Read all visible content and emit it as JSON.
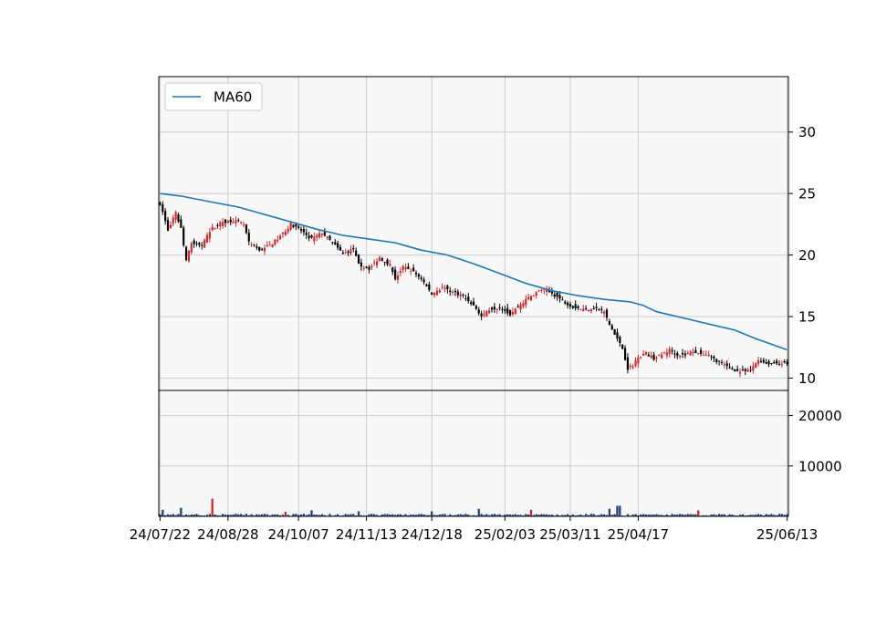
{
  "chart_data": {
    "type": "candlestick",
    "colors": {
      "up": "#d62728",
      "down": "#000000",
      "ma": "#1f77b4",
      "volume": "#1f3f7f",
      "volume_up": "#d62728",
      "panel_bg": "#f8f8f8",
      "grid": "#cccccc"
    },
    "legend": {
      "entries": [
        "MA60"
      ],
      "placement": "top-left"
    },
    "grid": true,
    "x_ticks": [
      "24/07/22",
      "24/08/28",
      "24/10/07",
      "24/11/13",
      "24/12/18",
      "25/02/03",
      "25/03/11",
      "25/04/17",
      "25/06/13"
    ],
    "price_panel": {
      "yaxis_side": "right",
      "yticks": [
        10,
        15,
        20,
        25,
        30
      ],
      "ylim": [
        9,
        34.5
      ]
    },
    "volume_panel": {
      "yaxis_side": "right",
      "yticks": [
        10000,
        20000
      ],
      "ylim": [
        0,
        25000
      ]
    },
    "ma60": [
      [
        0,
        25.0
      ],
      [
        8,
        24.8
      ],
      [
        20,
        24.3
      ],
      [
        30,
        23.9
      ],
      [
        40,
        23.3
      ],
      [
        50,
        22.7
      ],
      [
        60,
        22.1
      ],
      [
        70,
        21.6
      ],
      [
        80,
        21.3
      ],
      [
        90,
        21.0
      ],
      [
        95,
        20.7
      ],
      [
        100,
        20.4
      ],
      [
        110,
        20.0
      ],
      [
        120,
        19.3
      ],
      [
        130,
        18.5
      ],
      [
        140,
        17.7
      ],
      [
        150,
        17.1
      ],
      [
        160,
        16.7
      ],
      [
        170,
        16.4
      ],
      [
        180,
        16.2
      ],
      [
        185,
        15.9
      ],
      [
        190,
        15.4
      ],
      [
        200,
        14.9
      ],
      [
        210,
        14.4
      ],
      [
        220,
        13.9
      ],
      [
        228,
        13.2
      ],
      [
        236,
        12.6
      ],
      [
        240,
        12.3
      ]
    ],
    "anchors": [
      [
        0,
        24.2
      ],
      [
        1,
        23.5
      ],
      [
        3,
        22.0
      ],
      [
        6,
        23.4
      ],
      [
        8,
        22.2
      ],
      [
        10,
        19.5
      ],
      [
        12,
        21.0
      ],
      [
        16,
        20.8
      ],
      [
        20,
        22.2
      ],
      [
        24,
        22.7
      ],
      [
        28,
        22.8
      ],
      [
        32,
        22.5
      ],
      [
        34,
        21.0
      ],
      [
        38,
        20.4
      ],
      [
        42,
        20.8
      ],
      [
        46,
        21.5
      ],
      [
        50,
        22.5
      ],
      [
        54,
        22.0
      ],
      [
        58,
        21.3
      ],
      [
        62,
        21.8
      ],
      [
        66,
        21.0
      ],
      [
        70,
        20.1
      ],
      [
        74,
        20.5
      ],
      [
        76,
        19.2
      ],
      [
        80,
        18.9
      ],
      [
        84,
        19.8
      ],
      [
        88,
        19.2
      ],
      [
        90,
        18.1
      ],
      [
        93,
        19.0
      ],
      [
        96,
        18.8
      ],
      [
        100,
        18.1
      ],
      [
        104,
        16.8
      ],
      [
        108,
        17.4
      ],
      [
        112,
        17.0
      ],
      [
        116,
        16.7
      ],
      [
        120,
        15.9
      ],
      [
        123,
        15.0
      ],
      [
        126,
        15.6
      ],
      [
        130,
        15.8
      ],
      [
        134,
        15.2
      ],
      [
        138,
        16.0
      ],
      [
        142,
        16.7
      ],
      [
        146,
        17.2
      ],
      [
        150,
        16.9
      ],
      [
        154,
        16.3
      ],
      [
        158,
        15.8
      ],
      [
        162,
        15.6
      ],
      [
        166,
        15.7
      ],
      [
        170,
        15.4
      ],
      [
        172,
        14.3
      ],
      [
        174,
        13.6
      ],
      [
        177,
        12.4
      ],
      [
        179,
        10.8
      ],
      [
        181,
        11.0
      ],
      [
        183,
        11.8
      ],
      [
        186,
        12.0
      ],
      [
        189,
        11.6
      ],
      [
        192,
        11.9
      ],
      [
        195,
        12.3
      ],
      [
        198,
        11.9
      ],
      [
        201,
        11.9
      ],
      [
        204,
        12.2
      ],
      [
        207,
        12.0
      ],
      [
        210,
        11.8
      ],
      [
        214,
        11.3
      ],
      [
        218,
        10.8
      ],
      [
        222,
        10.5
      ],
      [
        226,
        10.6
      ],
      [
        229,
        11.5
      ],
      [
        232,
        11.2
      ]
    ],
    "volume_spikes": [
      [
        1,
        1300
      ],
      [
        8,
        1700
      ],
      [
        20,
        3500
      ],
      [
        48,
        900
      ],
      [
        58,
        1200
      ],
      [
        76,
        1000
      ],
      [
        104,
        1000
      ],
      [
        122,
        1500
      ],
      [
        142,
        1300
      ],
      [
        172,
        1500
      ],
      [
        175,
        2100
      ],
      [
        176,
        2100
      ],
      [
        206,
        1200
      ]
    ]
  }
}
